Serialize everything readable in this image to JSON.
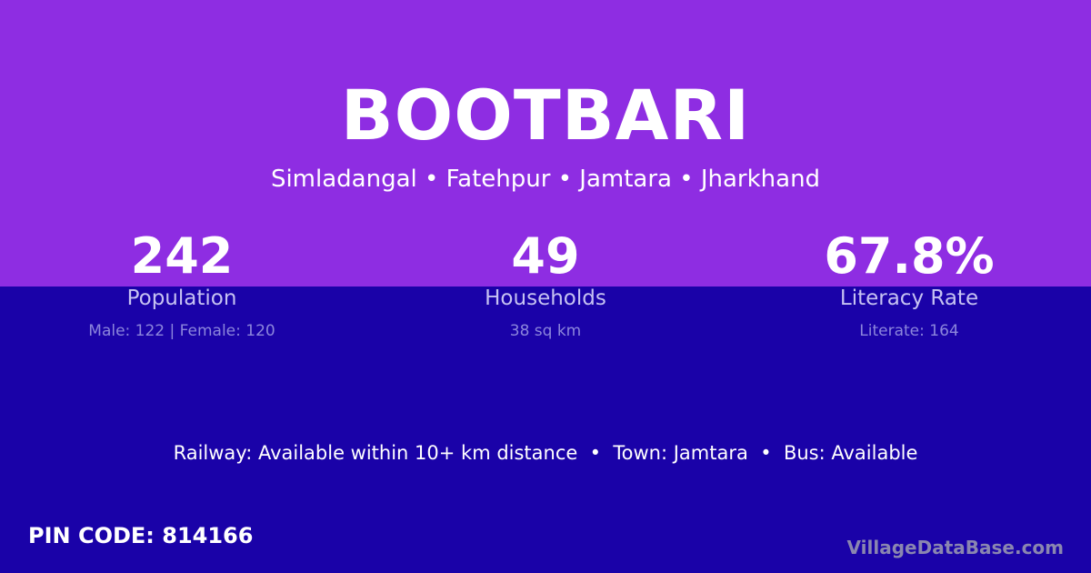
{
  "colors": {
    "top_background": "#8e2de2",
    "bottom_background": "#1a02a8"
  },
  "village": {
    "name": "BOOTBARI",
    "location": "Simladangal • Fatehpur • Jamtara • Jharkhand"
  },
  "stats": [
    {
      "value": "242",
      "label": "Population",
      "detail": "Male: 122 | Female: 120"
    },
    {
      "value": "49",
      "label": "Households",
      "detail": "38 sq km"
    },
    {
      "value": "67.8%",
      "label": "Literacy Rate",
      "detail": "Literate: 164"
    }
  ],
  "facts": "Railway: Available within 10+ km distance  •  Town: Jamtara  •  Bus: Available",
  "pin_code": "PIN CODE: 814166",
  "brand": "VillageDataBase.com"
}
